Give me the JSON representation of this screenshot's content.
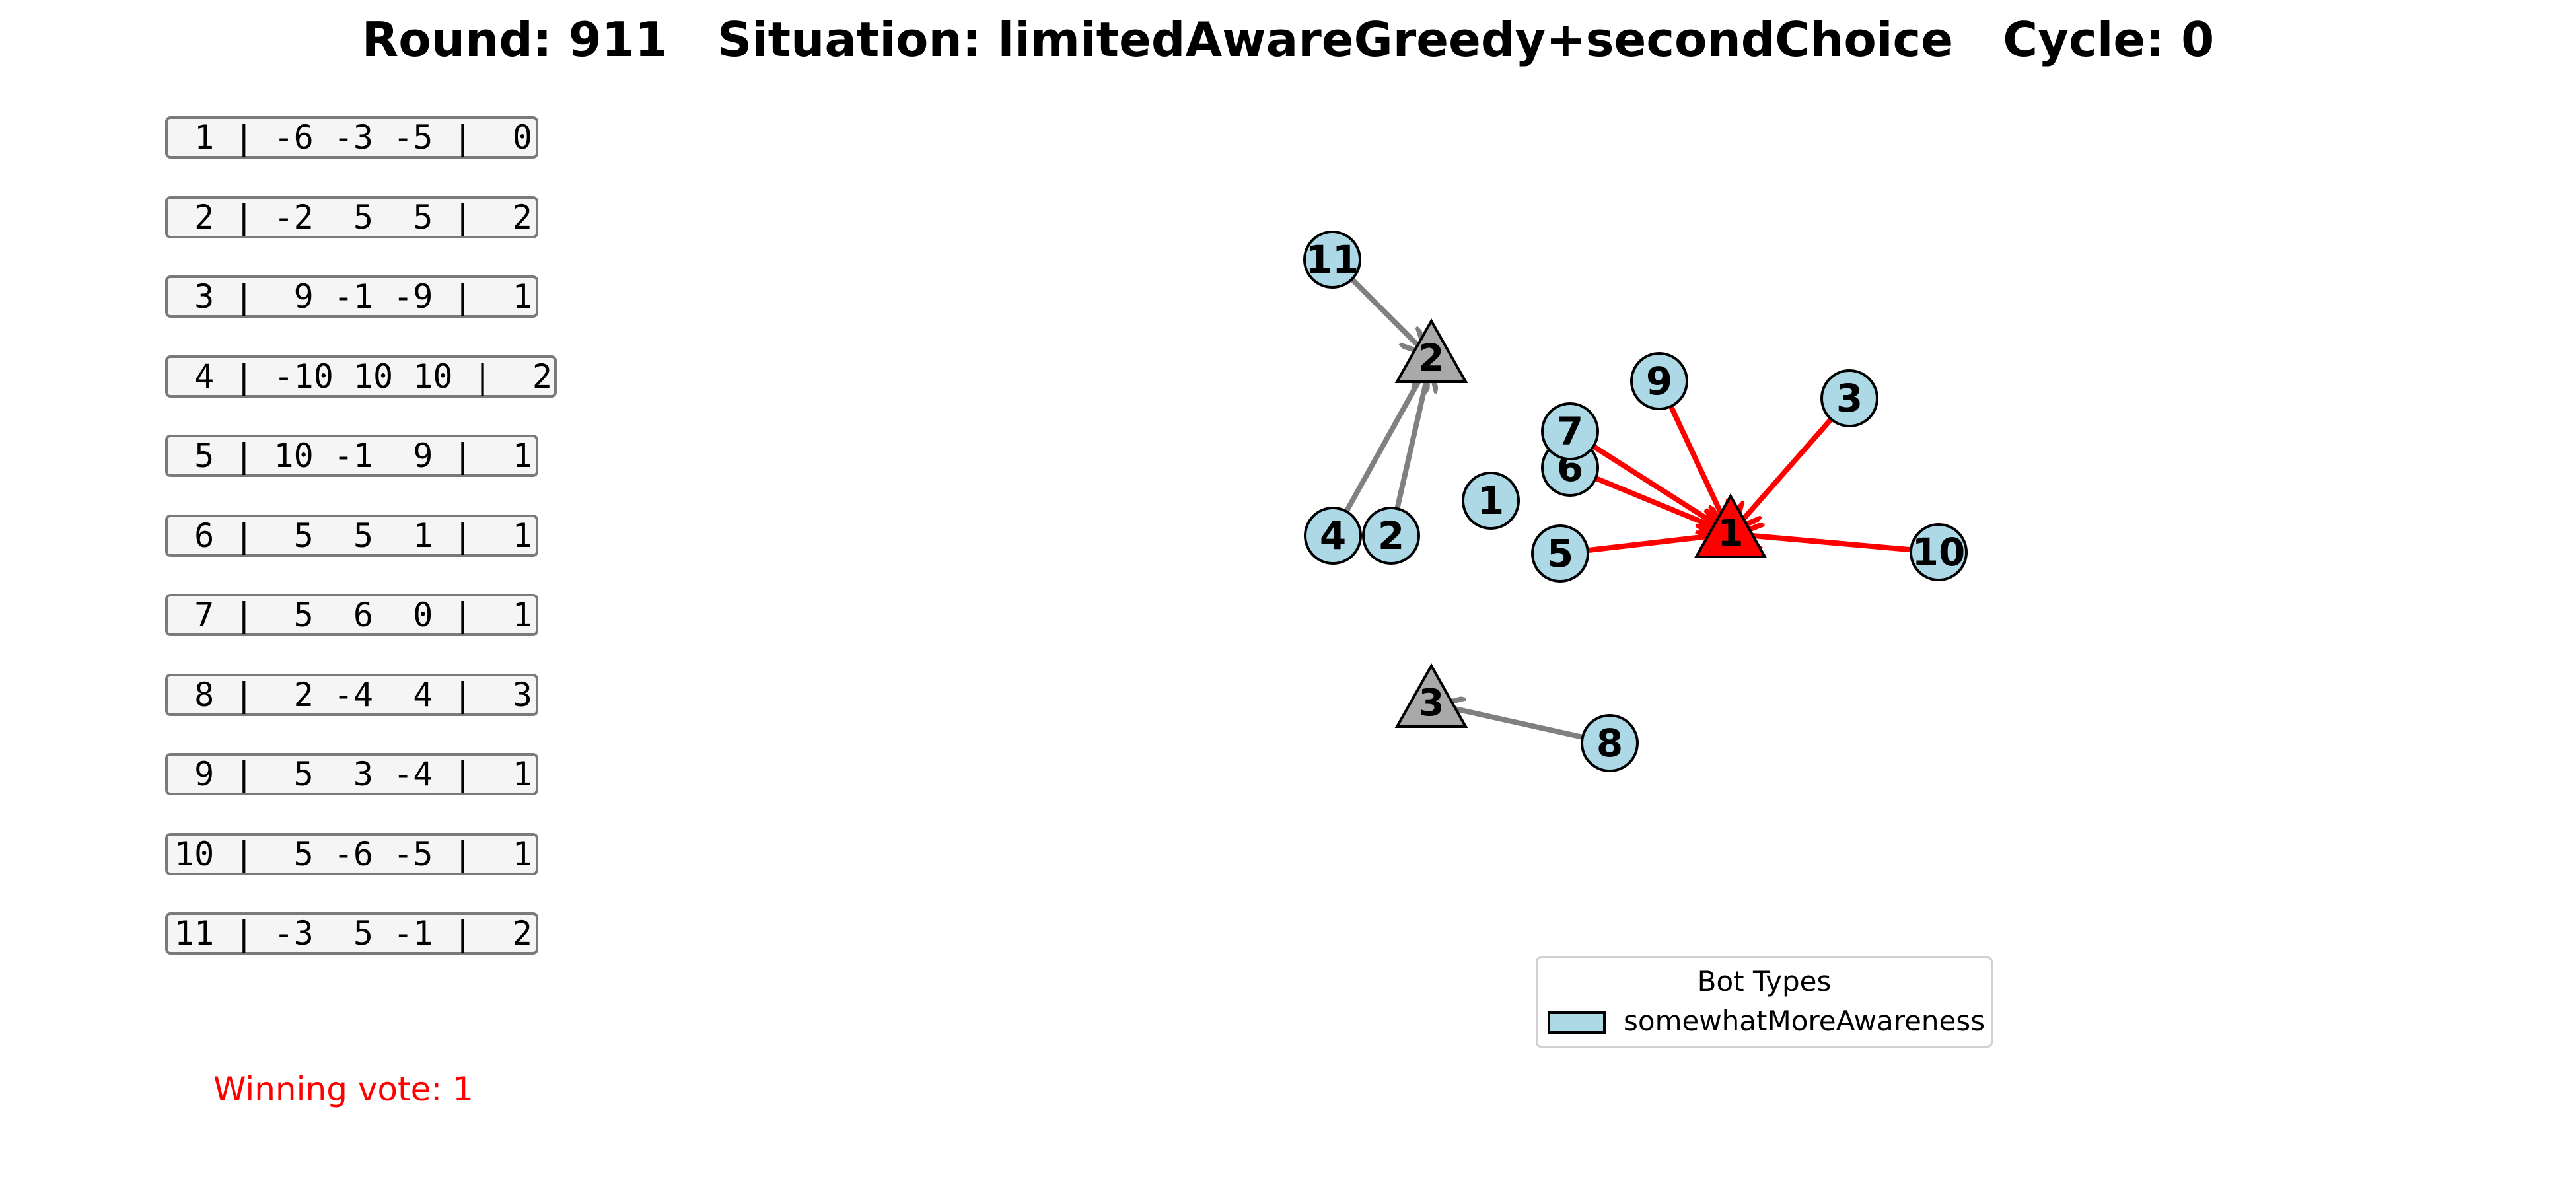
{
  "title": "Round: 911   Situation: limitedAwareGreedy+secondChoice   Cycle: 0",
  "preferences": [
    " 1 | -6 -3 -5 |  0",
    " 2 | -2  5  5 |  2",
    " 3 |  9 -1 -9 |  1",
    " 4 | -10 10 10 |  2",
    " 5 | 10 -1  9 |  1",
    " 6 |  5  5  1 |  1",
    " 7 |  5  6  0 |  1",
    " 8 |  2 -4  4 |  3",
    " 9 |  5  3 -4 |  1",
    "10 |  5 -6 -5 |  1",
    "11 | -3  5 -1 |  2"
  ],
  "winning_vote": "Winning vote: 1",
  "legend": {
    "title": "Bot Types",
    "items": [
      {
        "label": "somewhatMoreAwareness",
        "color": "#add8e6"
      }
    ]
  },
  "colors": {
    "bot_fill": "#add8e6",
    "winner_fill": "#ff0000",
    "option_fill": "#a9a9a9",
    "winner_edge": "#ff0000",
    "other_edge": "#808080"
  },
  "graph": {
    "options": [
      {
        "id": "1",
        "label": "1",
        "winner": true
      },
      {
        "id": "2",
        "label": "2",
        "winner": false
      },
      {
        "id": "3",
        "label": "3",
        "winner": false
      }
    ],
    "bots": [
      {
        "id": "1",
        "label": "1",
        "vote": null
      },
      {
        "id": "2",
        "label": "2",
        "vote": "2"
      },
      {
        "id": "3",
        "label": "3",
        "vote": "1"
      },
      {
        "id": "4",
        "label": "4",
        "vote": "2"
      },
      {
        "id": "5",
        "label": "5",
        "vote": "1"
      },
      {
        "id": "6",
        "label": "6",
        "vote": "1"
      },
      {
        "id": "7",
        "label": "7",
        "vote": "1"
      },
      {
        "id": "8",
        "label": "8",
        "vote": "3"
      },
      {
        "id": "9",
        "label": "9",
        "vote": "1"
      },
      {
        "id": "10",
        "label": "10",
        "vote": "1"
      },
      {
        "id": "11",
        "label": "11",
        "vote": "2"
      }
    ]
  }
}
